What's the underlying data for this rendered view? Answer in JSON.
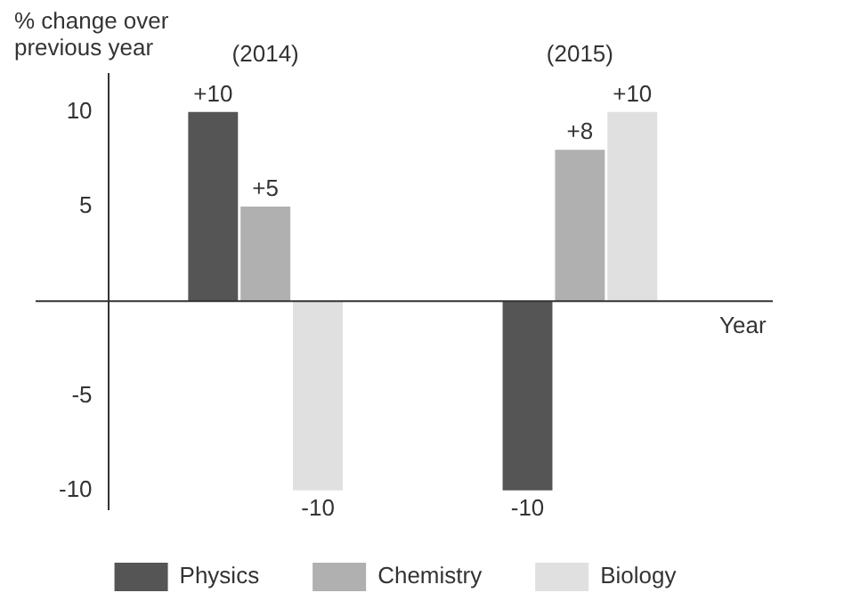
{
  "chart_data": {
    "type": "bar",
    "ylabel": "% change over previous year",
    "xlabel": "Year",
    "categories": [
      "(2014)",
      "(2015)"
    ],
    "series": [
      {
        "name": "Physics",
        "color": "#555555",
        "values": [
          10,
          -10
        ],
        "value_labels": [
          "+10",
          "-10"
        ]
      },
      {
        "name": "Chemistry",
        "color": "#b0b0b0",
        "values": [
          5,
          8
        ],
        "value_labels": [
          "+5",
          "+8"
        ]
      },
      {
        "name": "Biology",
        "color": "#e0e0e0",
        "values": [
          -10,
          10
        ],
        "value_labels": [
          "-10",
          "+10"
        ]
      }
    ],
    "ylim": [
      -11,
      12
    ],
    "yticks": [
      -10,
      -5,
      5,
      10
    ],
    "grid": false,
    "legend": "bottom"
  }
}
